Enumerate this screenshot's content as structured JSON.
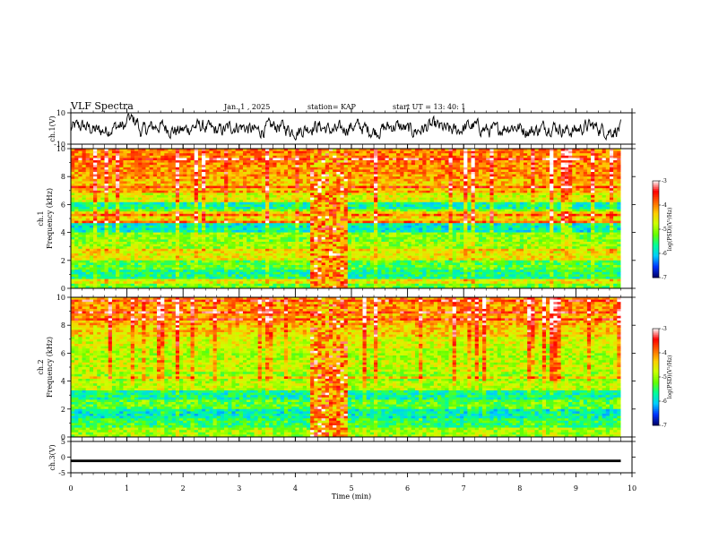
{
  "header": {
    "title": "VLF Spectra",
    "date": "Jan. 1 , 2025",
    "station": "station= KAP",
    "start": "start UT = 13: 40: 1"
  },
  "colors": {
    "spectrum": [
      "#000066",
      "#0033ff",
      "#00ccff",
      "#00ff99",
      "#66ff00",
      "#ccff00",
      "#ffcc00",
      "#ff6600",
      "#ff0000",
      "#ffffff"
    ],
    "trace": "#000000"
  },
  "chart_data": [
    {
      "type": "line",
      "name": "ch1-waveform",
      "ylabel": "ch.1(V)",
      "ylim": [
        -10,
        10
      ],
      "yticks": [
        "10",
        "-10"
      ],
      "xlim": [
        0,
        10
      ],
      "note": "noisy waveform around 0 V, plotted until ~9.8 min"
    },
    {
      "type": "heatmap",
      "name": "ch1-spectrogram",
      "ylabel_top": "ch.1",
      "ylabel": "Frequency (kHz)",
      "ylim": [
        0,
        10
      ],
      "yticks": [
        "0",
        "2",
        "4",
        "6",
        "8",
        "10"
      ],
      "xlim": [
        0,
        10
      ],
      "bright_interval_min": [
        4.3,
        4.9
      ],
      "colorbar": {
        "label": "log(PSD)(V²/Hz)",
        "ticks": [
          "-3",
          "-4",
          "-5",
          "-6",
          "-7"
        ],
        "range": [
          -7,
          -3
        ]
      },
      "bands_khz": [
        {
          "f": 0.2,
          "v": -5.2
        },
        {
          "f": 1.0,
          "v": -5.6
        },
        {
          "f": 1.6,
          "v": -5.3
        },
        {
          "f": 2.3,
          "v": -4.6
        },
        {
          "f": 3.0,
          "v": -5.0
        },
        {
          "f": 3.6,
          "v": -5.1
        },
        {
          "f": 4.3,
          "v": -5.8
        },
        {
          "f": 5.1,
          "v": -4.5
        },
        {
          "f": 5.8,
          "v": -5.7
        },
        {
          "f": 6.6,
          "v": -4.7
        },
        {
          "f": 7.4,
          "v": -4.3
        },
        {
          "f": 8.4,
          "v": -4.1
        },
        {
          "f": 9.4,
          "v": -4.0
        }
      ]
    },
    {
      "type": "heatmap",
      "name": "ch2-spectrogram",
      "ylabel_top": "ch.2",
      "ylabel": "Frequency (kHz)",
      "ylim": [
        0,
        10
      ],
      "yticks": [
        "0",
        "2",
        "4",
        "6",
        "8",
        "10"
      ],
      "xlim": [
        0,
        10
      ],
      "bright_interval_min": [
        4.3,
        4.9
      ],
      "colorbar": {
        "label": "log(PSD)(V²/Hz)",
        "ticks": [
          "-3",
          "-4",
          "-5",
          "-6",
          "-7"
        ],
        "range": [
          -7,
          -3
        ]
      },
      "bands_khz": [
        {
          "f": 0.3,
          "v": -5.0
        },
        {
          "f": 1.0,
          "v": -5.5
        },
        {
          "f": 1.6,
          "v": -5.8
        },
        {
          "f": 2.3,
          "v": -5.3
        },
        {
          "f": 2.9,
          "v": -5.7
        },
        {
          "f": 3.6,
          "v": -4.9
        },
        {
          "f": 4.3,
          "v": -5.0
        },
        {
          "f": 5.1,
          "v": -4.8
        },
        {
          "f": 5.9,
          "v": -4.9
        },
        {
          "f": 6.7,
          "v": -4.7
        },
        {
          "f": 7.5,
          "v": -4.4
        },
        {
          "f": 8.4,
          "v": -4.2
        },
        {
          "f": 9.4,
          "v": -4.1
        }
      ]
    },
    {
      "type": "line",
      "name": "ch3-waveform",
      "ylabel": "ch.3(V)",
      "ylim": [
        -5,
        5
      ],
      "yticks": [
        "5",
        "0",
        "-5"
      ],
      "xlim": [
        0,
        10
      ],
      "xlabel": "Time (min)",
      "xticks": [
        "0",
        "1",
        "2",
        "3",
        "4",
        "5",
        "6",
        "7",
        "8",
        "9",
        "10"
      ],
      "level_band_v": [
        -1.6,
        -0.8
      ],
      "note": "flat thick band around -1.2 V until ~9.8 min"
    }
  ]
}
